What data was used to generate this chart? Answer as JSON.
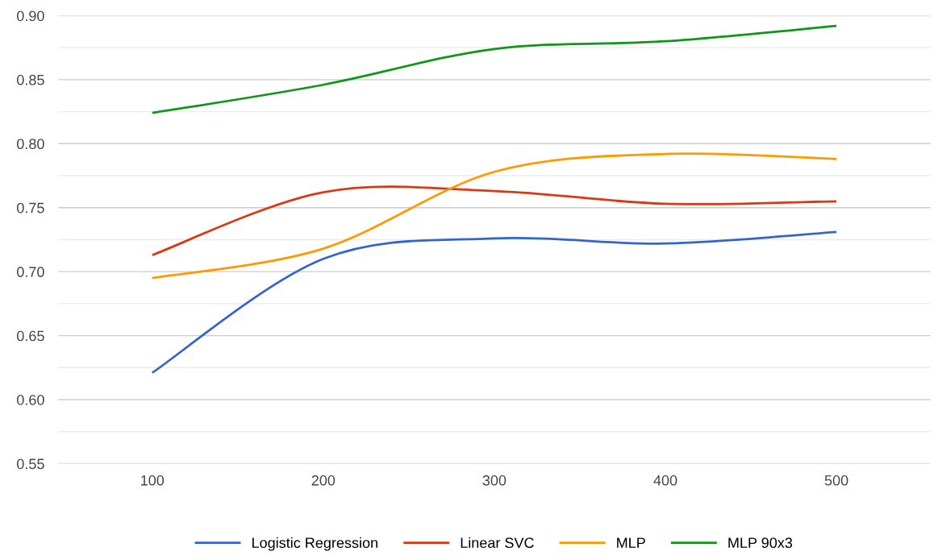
{
  "chart_data": {
    "type": "line",
    "categories": [
      "100",
      "200",
      "300",
      "400",
      "500"
    ],
    "series": [
      {
        "name": "Logistic Regression",
        "color": "#3366cc",
        "values": [
          0.621,
          0.71,
          0.726,
          0.722,
          0.731
        ]
      },
      {
        "name": "Linear SVC",
        "color": "#dc3912",
        "values": [
          0.713,
          0.762,
          0.763,
          0.753,
          0.755
        ]
      },
      {
        "name": "MLP",
        "color": "#ff9900",
        "values": [
          0.695,
          0.718,
          0.778,
          0.792,
          0.788
        ]
      },
      {
        "name": "MLP 90x3",
        "color": "#109618",
        "values": [
          0.824,
          0.846,
          0.874,
          0.88,
          0.892
        ]
      }
    ],
    "ylim": [
      0.55,
      0.9
    ],
    "yticks": [
      {
        "value": 0.55,
        "label": "0.55"
      },
      {
        "value": 0.6,
        "label": "0.60"
      },
      {
        "value": 0.65,
        "label": "0.65"
      },
      {
        "value": 0.7,
        "label": "0.70"
      },
      {
        "value": 0.75,
        "label": "0.75"
      },
      {
        "value": 0.8,
        "label": "0.80"
      },
      {
        "value": 0.85,
        "label": "0.85"
      },
      {
        "value": 0.9,
        "label": "0.90"
      }
    ],
    "grid": "y",
    "legend": "bottom",
    "line_style": "solid",
    "marker": "none"
  }
}
